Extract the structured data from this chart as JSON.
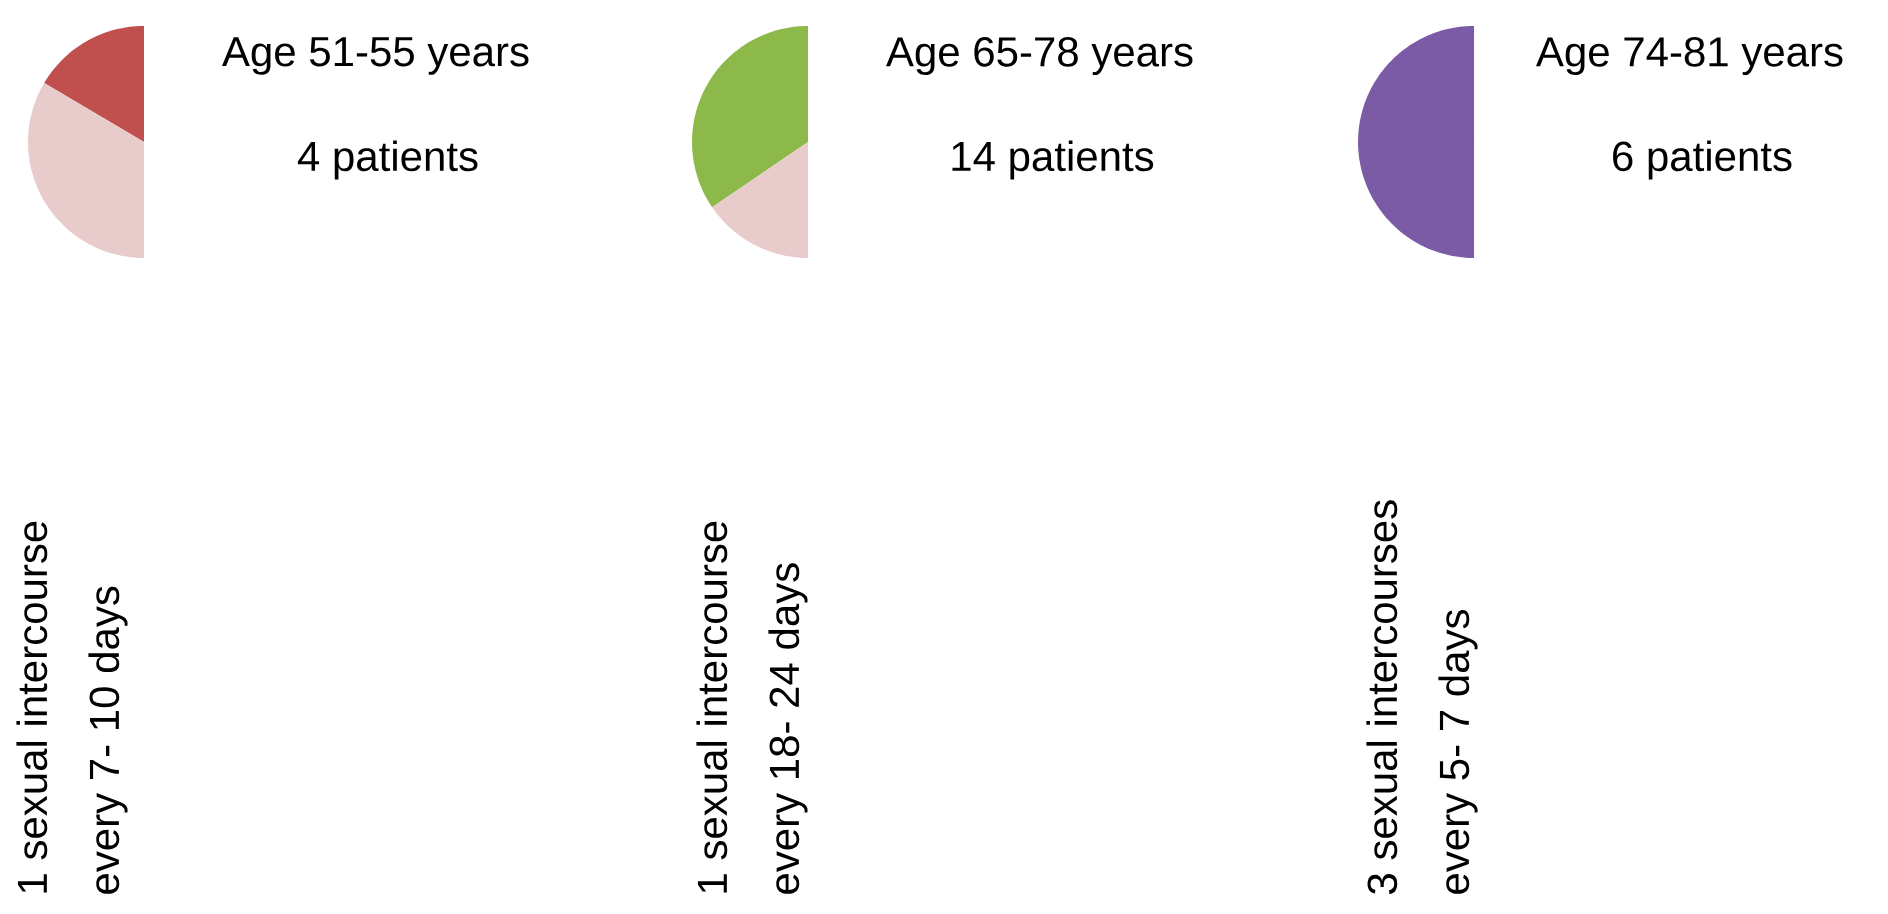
{
  "chart_data": [
    {
      "type": "pie",
      "title": "Age 51-55 years",
      "subtitle": "4 patients",
      "categories": [
        null,
        null
      ],
      "values": [
        33,
        67
      ],
      "colors": [
        "#c0504d",
        "#e8cccc"
      ],
      "annotations": [
        "1 sexual intercourse",
        "every 7- 10 days"
      ]
    },
    {
      "type": "pie",
      "title": "Age 65-78 years",
      "subtitle": "14 patients",
      "categories": [
        null,
        null
      ],
      "values": [
        69,
        31
      ],
      "colors": [
        "#8db84a",
        "#e8cccc"
      ],
      "annotations": [
        "1 sexual intercourse",
        "every 18- 24 days"
      ]
    },
    {
      "type": "pie",
      "title": "Age 74-81 years",
      "subtitle": "6 patients",
      "categories": [
        null,
        null
      ],
      "values": [
        100,
        0
      ],
      "colors": [
        "#7b5ba6",
        "#e8cccc"
      ],
      "annotations": [
        "3 sexual intercourses",
        "every 5- 7 days"
      ]
    }
  ]
}
